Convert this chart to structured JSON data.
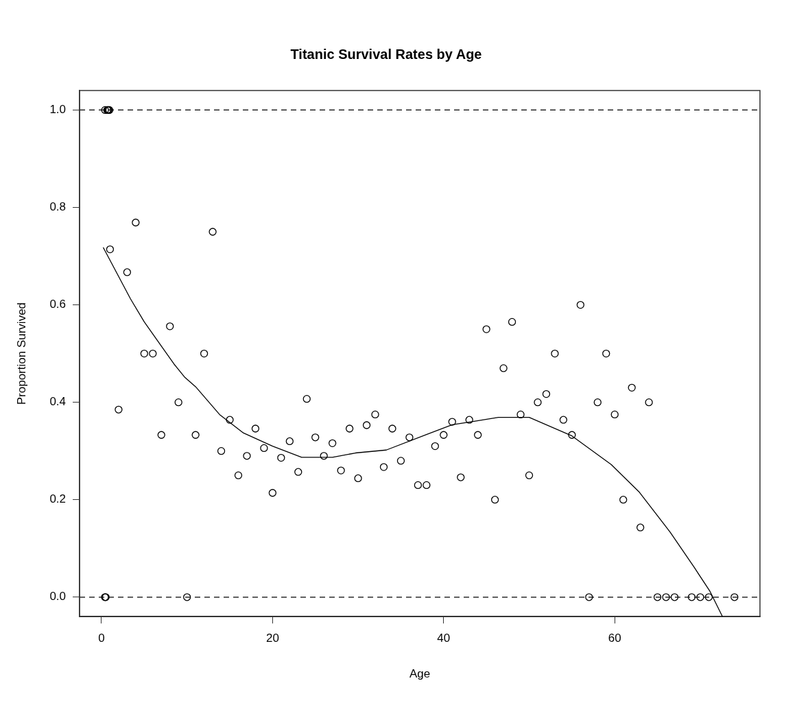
{
  "chart_data": {
    "type": "scatter",
    "title": "Titanic Survival Rates by Age",
    "xlabel": "Age",
    "ylabel": "Proportion Survived",
    "xlim": [
      -2.56,
      76.98
    ],
    "ylim": [
      -0.04,
      1.04
    ],
    "xticks": [
      0,
      20,
      40,
      60
    ],
    "yticks": [
      {
        "value": 0,
        "label": "0.0"
      },
      {
        "value": 0.2,
        "label": "0.2"
      },
      {
        "value": 0.4,
        "label": "0.4"
      },
      {
        "value": 0.6,
        "label": "0.6"
      },
      {
        "value": 0.8,
        "label": "0.8"
      },
      {
        "value": 1,
        "label": "1.0"
      }
    ],
    "marker": "circle",
    "grid": false,
    "legend": false,
    "ref_lines": [
      {
        "axis": "y",
        "value": 0,
        "line_style": "dashed",
        "color": "#000000"
      },
      {
        "axis": "y",
        "value": 1,
        "line_style": "dashed",
        "color": "#000000"
      }
    ],
    "series": [
      {
        "type": "scatter",
        "color": "#000000",
        "x": [
          0.4,
          0.5,
          0.42,
          0.67,
          0.75,
          0.83,
          0.92,
          1,
          2,
          3,
          4,
          5,
          6,
          7,
          8,
          9,
          10,
          11,
          12,
          13,
          14,
          15,
          16,
          17,
          18,
          19,
          20,
          21,
          22,
          23,
          24,
          25,
          26,
          27,
          28,
          29,
          30,
          31,
          32,
          33,
          34,
          35,
          36,
          37,
          38,
          39,
          40,
          41,
          42,
          43,
          44,
          45,
          46,
          47,
          48,
          49,
          50,
          51,
          52,
          53,
          54,
          55,
          56,
          57,
          58,
          59,
          60,
          61,
          62,
          63,
          64,
          65,
          66,
          67,
          69,
          70,
          71,
          74
        ],
        "values": [
          0,
          0,
          1,
          1,
          1,
          1,
          1,
          0.714,
          0.385,
          0.667,
          0.769,
          0.5,
          0.5,
          0.333,
          0.556,
          0.4,
          0,
          0.333,
          0.5,
          0.75,
          0.3,
          0.364,
          0.25,
          0.29,
          0.346,
          0.306,
          0.214,
          0.286,
          0.32,
          0.257,
          0.407,
          0.328,
          0.29,
          0.316,
          0.26,
          0.346,
          0.244,
          0.353,
          0.375,
          0.267,
          0.346,
          0.28,
          0.328,
          0.23,
          0.23,
          0.31,
          0.333,
          0.36,
          0.246,
          0.364,
          0.333,
          0.55,
          0.2,
          0.47,
          0.565,
          0.375,
          0.25,
          0.4,
          0.417,
          0.5,
          0.364,
          0.333,
          0.6,
          0,
          0.4,
          0.5,
          0.375,
          0.2,
          0.43,
          0.143,
          0.4,
          0,
          0,
          0,
          0,
          0,
          0,
          0
        ]
      },
      {
        "type": "line",
        "color": "#000000",
        "marker": "none",
        "x": [
          0.2,
          3.4,
          5,
          8.5,
          9.7,
          11,
          13.8,
          16.6,
          20,
          23.4,
          27,
          29.7,
          33.3,
          38,
          41,
          43.2,
          46.4,
          50,
          55,
          59.6,
          62.9,
          66.5,
          69.3,
          71.1,
          72.6
        ],
        "values": [
          0.718,
          0.612,
          0.565,
          0.478,
          0.452,
          0.432,
          0.375,
          0.337,
          0.31,
          0.287,
          0.287,
          0.296,
          0.302,
          0.334,
          0.354,
          0.36,
          0.369,
          0.369,
          0.331,
          0.272,
          0.215,
          0.133,
          0.061,
          0.013,
          -0.04
        ]
      }
    ]
  }
}
